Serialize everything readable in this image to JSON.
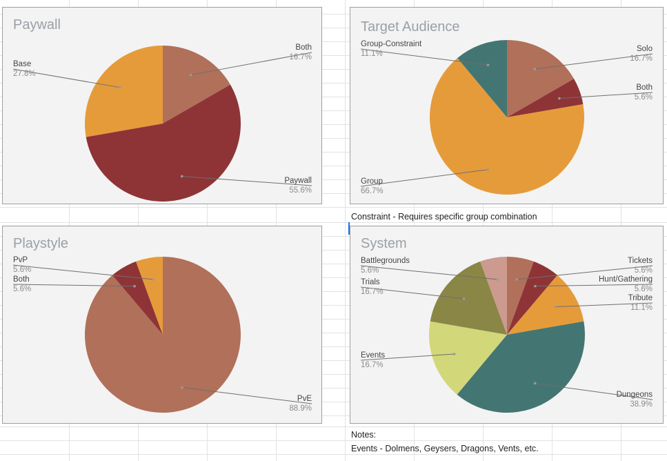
{
  "notes": {
    "constraint": "Constraint - Requires specific group combination",
    "notes_label": "Notes:",
    "events": "Events - Dolmens, Geysers, Dragons, Vents, etc."
  },
  "chart_data": [
    {
      "type": "pie",
      "title": "Paywall",
      "slices": [
        {
          "name": "Both",
          "value": 16.7,
          "label": "16.7%",
          "color": "#b1705a"
        },
        {
          "name": "Paywall",
          "value": 55.6,
          "label": "55.6%",
          "color": "#8e3437"
        },
        {
          "name": "Base",
          "value": 27.8,
          "label": "27.8%",
          "color": "#e69b3a"
        }
      ]
    },
    {
      "type": "pie",
      "title": "Target Audience",
      "slices": [
        {
          "name": "Solo",
          "value": 16.7,
          "label": "16.7%",
          "color": "#b1705a"
        },
        {
          "name": "Both",
          "value": 5.6,
          "label": "5.6%",
          "color": "#8e3437"
        },
        {
          "name": "Group",
          "value": 66.7,
          "label": "66.7%",
          "color": "#e69b3a"
        },
        {
          "name": "Group-Constraint",
          "value": 11.1,
          "label": "11.1%",
          "color": "#437673"
        }
      ]
    },
    {
      "type": "pie",
      "title": "Playstyle",
      "slices": [
        {
          "name": "PvE",
          "value": 88.9,
          "label": "88.9%",
          "color": "#b1705a"
        },
        {
          "name": "Both",
          "value": 5.6,
          "label": "5.6%",
          "color": "#8e3437"
        },
        {
          "name": "PvP",
          "value": 5.6,
          "label": "5.6%",
          "color": "#e69b3a"
        }
      ]
    },
    {
      "type": "pie",
      "title": "System",
      "slices": [
        {
          "name": "Tickets",
          "value": 5.6,
          "label": "5.6%",
          "color": "#b1705a"
        },
        {
          "name": "Hunt/Gathering",
          "value": 5.6,
          "label": "5.6%",
          "color": "#8e3437"
        },
        {
          "name": "Tribute",
          "value": 11.1,
          "label": "11.1%",
          "color": "#e69b3a"
        },
        {
          "name": "Dungeons",
          "value": 38.9,
          "label": "38.9%",
          "color": "#437673"
        },
        {
          "name": "Events",
          "value": 16.7,
          "label": "16.7%",
          "color": "#d2d779"
        },
        {
          "name": "Trials",
          "value": 16.7,
          "label": "16.7%",
          "color": "#8a8646"
        },
        {
          "name": "Battlegrounds",
          "value": 5.6,
          "label": "5.6%",
          "color": "#cc9a8e"
        }
      ]
    }
  ]
}
